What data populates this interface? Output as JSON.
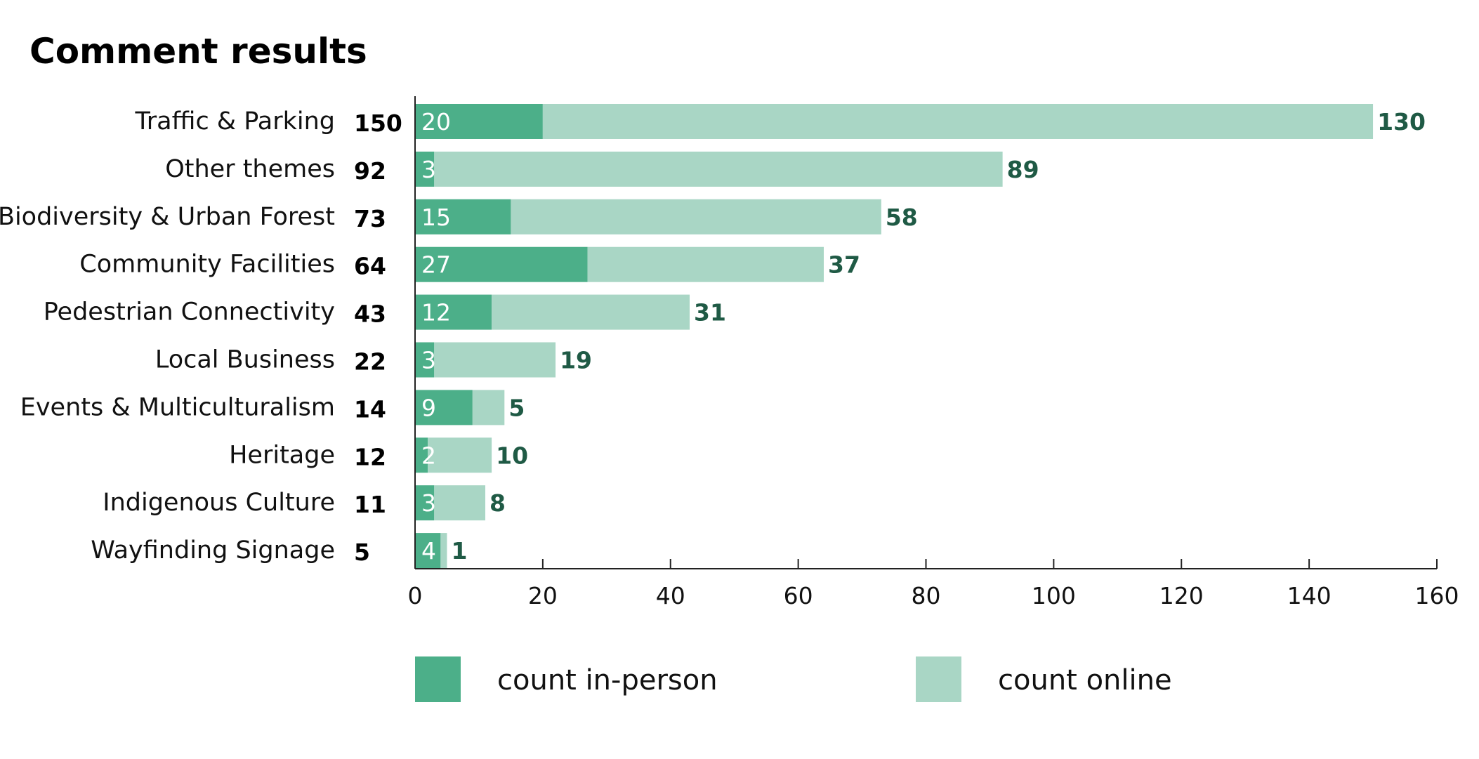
{
  "chart_data": {
    "type": "bar",
    "orientation": "horizontal",
    "stacked": true,
    "title": "Comment results",
    "categories": [
      "Traffic & Parking",
      "Other themes",
      "Biodiversity & Urban Forest",
      "Community Facilities",
      "Pedestrian Connectivity",
      "Local Business",
      "Events & Multiculturalism",
      "Heritage",
      "Indigenous Culture",
      "Wayfinding Signage"
    ],
    "totals": [
      150,
      92,
      73,
      64,
      43,
      22,
      14,
      12,
      11,
      5
    ],
    "series": [
      {
        "name": "count in-person",
        "color": "#4caf89",
        "values": [
          20,
          3,
          15,
          27,
          12,
          3,
          9,
          2,
          3,
          4
        ]
      },
      {
        "name": "count online",
        "color": "#a9d6c5",
        "values": [
          130,
          89,
          58,
          37,
          31,
          19,
          5,
          10,
          8,
          1
        ]
      }
    ],
    "xlim": [
      0,
      160
    ],
    "xticks": [
      0,
      20,
      40,
      60,
      80,
      100,
      120,
      140,
      160
    ],
    "grid": false,
    "legend_position": "bottom",
    "label_color": "#1f5a45"
  }
}
